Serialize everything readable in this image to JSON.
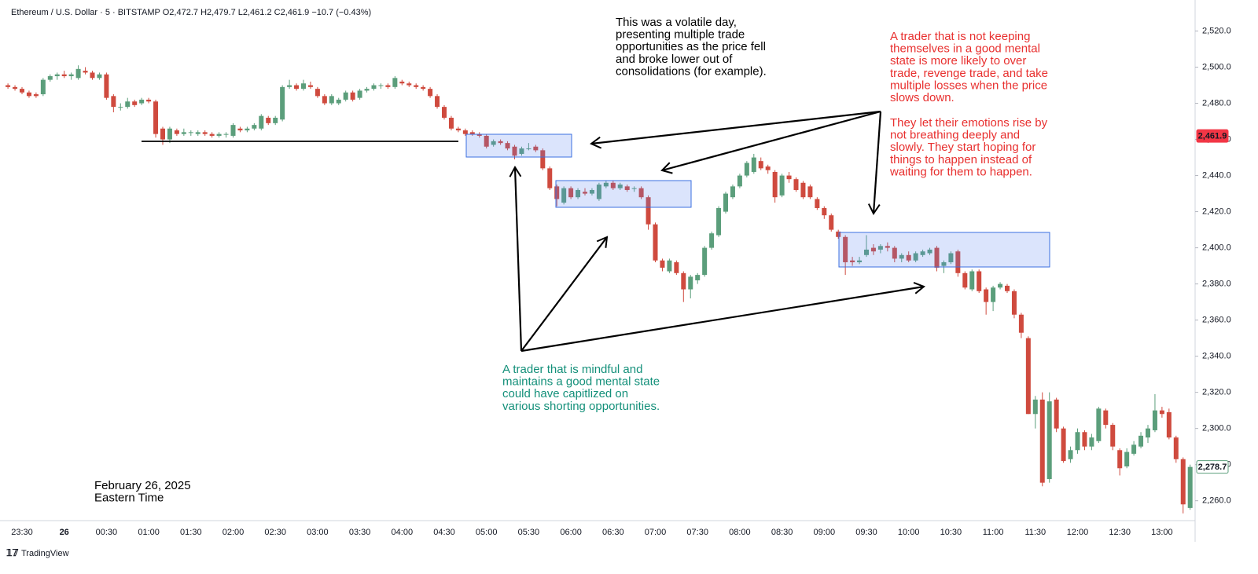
{
  "chart_data": {
    "type": "candlestick",
    "header": "Ethereum / U.S. Dollar · 5 · BITSTAMP  O2,472.7 H2,479.7 L2,461.2 C2,461.9 −10.7 (−0.43%)",
    "up_color": "#5b9e7b",
    "down_color": "#cf4a3e",
    "grid": false,
    "ylim": [
      2249,
      2535
    ],
    "yticks": [
      {
        "value": 2260,
        "label": "2,260.0"
      },
      {
        "value": 2280,
        "label": "2,280.0"
      },
      {
        "value": 2300,
        "label": "2,300.0"
      },
      {
        "value": 2320,
        "label": "2,320.0"
      },
      {
        "value": 2340,
        "label": "2,340.0"
      },
      {
        "value": 2360,
        "label": "2,360.0"
      },
      {
        "value": 2380,
        "label": "2,380.0"
      },
      {
        "value": 2400,
        "label": "2,400.0"
      },
      {
        "value": 2420,
        "label": "2,420.0"
      },
      {
        "value": 2440,
        "label": "2,440.0"
      },
      {
        "value": 2460,
        "label": "2,460.0"
      },
      {
        "value": 2480,
        "label": "2,480.0"
      },
      {
        "value": 2500,
        "label": "2,500.0"
      },
      {
        "value": 2520,
        "label": "2,520.0"
      }
    ],
    "price_labels": [
      {
        "value": 2461.9,
        "label": "2,461.9",
        "color": "#f23645"
      },
      {
        "value": 2278.7,
        "label": "2,278.7",
        "color": "#5b9e7b"
      }
    ],
    "categories": [
      null,
      null,
      "23:30",
      null,
      null,
      null,
      null,
      null,
      "26",
      null,
      null,
      null,
      null,
      null,
      "00:30",
      null,
      null,
      null,
      null,
      null,
      "01:00",
      null,
      null,
      null,
      null,
      null,
      "01:30",
      null,
      null,
      null,
      null,
      null,
      "02:00",
      null,
      null,
      null,
      null,
      null,
      "02:30",
      null,
      null,
      null,
      null,
      null,
      "03:00",
      null,
      null,
      null,
      null,
      null,
      "03:30",
      null,
      null,
      null,
      null,
      null,
      "04:00",
      null,
      null,
      null,
      null,
      null,
      "04:30",
      null,
      null,
      null,
      null,
      null,
      "05:00",
      null,
      null,
      null,
      null,
      null,
      "05:30",
      null,
      null,
      null,
      null,
      null,
      "06:00",
      null,
      null,
      null,
      null,
      null,
      "06:30",
      null,
      null,
      null,
      null,
      null,
      "07:00",
      null,
      null,
      null,
      null,
      null,
      "07:30",
      null,
      null,
      null,
      null,
      null,
      "08:00",
      null,
      null,
      null,
      null,
      null,
      "08:30",
      null,
      null,
      null,
      null,
      null,
      "09:00",
      null,
      null,
      null,
      null,
      null,
      "09:30",
      null,
      null,
      null,
      null,
      null,
      "10:00",
      null,
      null,
      null,
      null,
      null,
      "10:30",
      null,
      null,
      null,
      null,
      null,
      "11:00",
      null,
      null,
      null,
      null,
      null,
      "11:30",
      null,
      null,
      null,
      null,
      null,
      "12:00",
      null,
      null,
      null,
      null,
      null,
      "12:30",
      null,
      null,
      null,
      null,
      null,
      "13:00",
      null,
      null,
      null,
      null
    ],
    "candles": [
      [
        2490,
        2491,
        2488,
        2489
      ],
      [
        2489,
        2490,
        2487,
        2488
      ],
      [
        2488,
        2489,
        2485,
        2486
      ],
      [
        2486,
        2487,
        2483,
        2484
      ],
      [
        2485,
        2486,
        2483,
        2484
      ],
      [
        2485,
        2494,
        2484,
        2493
      ],
      [
        2493,
        2496,
        2492,
        2495
      ],
      [
        2495,
        2497,
        2493,
        2496
      ],
      [
        2496,
        2498,
        2494,
        2495
      ],
      [
        2495,
        2497,
        2493,
        2496
      ],
      [
        2494,
        2501,
        2493,
        2499
      ],
      [
        2498,
        2500,
        2496,
        2497
      ],
      [
        2497,
        2498,
        2493,
        2494
      ],
      [
        2494,
        2497,
        2493,
        2496
      ],
      [
        2496,
        2497,
        2482,
        2483
      ],
      [
        2484,
        2485,
        2475,
        2478
      ],
      [
        2478,
        2480,
        2476,
        2478
      ],
      [
        2478,
        2483,
        2477,
        2481
      ],
      [
        2481,
        2482,
        2478,
        2479
      ],
      [
        2480,
        2483,
        2479,
        2482
      ],
      [
        2482,
        2483,
        2480,
        2481
      ],
      [
        2481,
        2482,
        2461,
        2463
      ],
      [
        2466,
        2467,
        2457,
        2460
      ],
      [
        2460,
        2467,
        2458,
        2466
      ],
      [
        2465,
        2466,
        2462,
        2463
      ],
      [
        2463,
        2466,
        2462,
        2464
      ],
      [
        2464,
        2465,
        2462,
        2464
      ],
      [
        2463,
        2465,
        2462,
        2464
      ],
      [
        2464,
        2465,
        2462,
        2463
      ],
      [
        2463,
        2464,
        2461,
        2462
      ],
      [
        2462,
        2464,
        2461,
        2463
      ],
      [
        2463,
        2464,
        2461,
        2463
      ],
      [
        2462,
        2469,
        2461,
        2468
      ],
      [
        2466,
        2467,
        2464,
        2465
      ],
      [
        2465,
        2467,
        2464,
        2466
      ],
      [
        2466,
        2469,
        2465,
        2468
      ],
      [
        2466,
        2474,
        2465,
        2473
      ],
      [
        2472,
        2473,
        2468,
        2469
      ],
      [
        2469,
        2473,
        2468,
        2472
      ],
      [
        2471,
        2490,
        2470,
        2489
      ],
      [
        2489,
        2493,
        2488,
        2490
      ],
      [
        2490,
        2491,
        2487,
        2488
      ],
      [
        2488,
        2493,
        2487,
        2491
      ],
      [
        2490,
        2492,
        2488,
        2489
      ],
      [
        2488,
        2489,
        2483,
        2484
      ],
      [
        2484,
        2485,
        2479,
        2480
      ],
      [
        2480,
        2485,
        2479,
        2484
      ],
      [
        2480,
        2483,
        2479,
        2482
      ],
      [
        2482,
        2487,
        2481,
        2486
      ],
      [
        2486,
        2487,
        2481,
        2482
      ],
      [
        2483,
        2488,
        2482,
        2487
      ],
      [
        2487,
        2489,
        2486,
        2488
      ],
      [
        2488,
        2491,
        2487,
        2490
      ],
      [
        2490,
        2491,
        2488,
        2490
      ],
      [
        2490,
        2491,
        2488,
        2489
      ],
      [
        2489,
        2495,
        2488,
        2494
      ],
      [
        2492,
        2493,
        2490,
        2491
      ],
      [
        2491,
        2492,
        2489,
        2490
      ],
      [
        2490,
        2491,
        2488,
        2489
      ],
      [
        2489,
        2490,
        2487,
        2488
      ],
      [
        2488,
        2489,
        2483,
        2484
      ],
      [
        2484,
        2485,
        2477,
        2478
      ],
      [
        2478,
        2479,
        2471,
        2472
      ],
      [
        2472,
        2473,
        2465,
        2466
      ],
      [
        2466,
        2467,
        2464,
        2465
      ],
      [
        2465,
        2466,
        2462,
        2463
      ],
      [
        2464,
        2465,
        2462,
        2463
      ],
      [
        2463,
        2464,
        2461,
        2462
      ],
      [
        2462,
        2463,
        2455,
        2456
      ],
      [
        2457,
        2460,
        2456,
        2459
      ],
      [
        2459,
        2460,
        2457,
        2458
      ],
      [
        2458,
        2459,
        2454,
        2455
      ],
      [
        2456,
        2457,
        2449,
        2451
      ],
      [
        2452,
        2456,
        2451,
        2455
      ],
      [
        2455,
        2458,
        2454,
        2455
      ],
      [
        2456,
        2457,
        2453,
        2454
      ],
      [
        2454,
        2455,
        2443,
        2444
      ],
      [
        2444,
        2445,
        2432,
        2433
      ],
      [
        2434,
        2435,
        2423,
        2427
      ],
      [
        2425,
        2434,
        2424,
        2433
      ],
      [
        2433,
        2434,
        2427,
        2428
      ],
      [
        2428,
        2433,
        2427,
        2432
      ],
      [
        2431,
        2433,
        2429,
        2430
      ],
      [
        2430,
        2433,
        2429,
        2432
      ],
      [
        2427,
        2436,
        2426,
        2435
      ],
      [
        2434,
        2437,
        2433,
        2436
      ],
      [
        2436,
        2437,
        2432,
        2433
      ],
      [
        2433,
        2436,
        2432,
        2435
      ],
      [
        2434,
        2435,
        2431,
        2432
      ],
      [
        2433,
        2434,
        2431,
        2433
      ],
      [
        2433,
        2434,
        2427,
        2428
      ],
      [
        2428,
        2429,
        2410,
        2413
      ],
      [
        2413,
        2414,
        2392,
        2393
      ],
      [
        2393,
        2394,
        2387,
        2389
      ],
      [
        2387,
        2394,
        2386,
        2393
      ],
      [
        2392,
        2393,
        2385,
        2386
      ],
      [
        2386,
        2387,
        2370,
        2377
      ],
      [
        2377,
        2385,
        2372,
        2384
      ],
      [
        2382,
        2386,
        2380,
        2385
      ],
      [
        2385,
        2401,
        2384,
        2400
      ],
      [
        2400,
        2409,
        2399,
        2408
      ],
      [
        2407,
        2423,
        2406,
        2422
      ],
      [
        2420,
        2431,
        2419,
        2430
      ],
      [
        2428,
        2435,
        2427,
        2434
      ],
      [
        2434,
        2441,
        2433,
        2440
      ],
      [
        2440,
        2448,
        2439,
        2447
      ],
      [
        2442,
        2452,
        2441,
        2450
      ],
      [
        2448,
        2450,
        2443,
        2444
      ],
      [
        2445,
        2446,
        2441,
        2443
      ],
      [
        2442,
        2443,
        2425,
        2428
      ],
      [
        2429,
        2441,
        2428,
        2440
      ],
      [
        2440,
        2442,
        2436,
        2438
      ],
      [
        2438,
        2439,
        2431,
        2432
      ],
      [
        2436,
        2437,
        2427,
        2428
      ],
      [
        2434,
        2435,
        2427,
        2428
      ],
      [
        2427,
        2428,
        2421,
        2422
      ],
      [
        2422,
        2423,
        2416,
        2418
      ],
      [
        2418,
        2419,
        2409,
        2410
      ],
      [
        2409,
        2410,
        2405,
        2406
      ],
      [
        2406,
        2407,
        2385,
        2392
      ],
      [
        2393,
        2395,
        2390,
        2392
      ],
      [
        2392,
        2395,
        2391,
        2393
      ],
      [
        2396,
        2407,
        2395,
        2399
      ],
      [
        2400,
        2402,
        2396,
        2398
      ],
      [
        2399,
        2402,
        2397,
        2401
      ],
      [
        2401,
        2403,
        2398,
        2400
      ],
      [
        2400,
        2401,
        2392,
        2394
      ],
      [
        2394,
        2397,
        2392,
        2396
      ],
      [
        2396,
        2398,
        2392,
        2393
      ],
      [
        2393,
        2398,
        2392,
        2397
      ],
      [
        2396,
        2399,
        2395,
        2398
      ],
      [
        2397,
        2400,
        2396,
        2399
      ],
      [
        2400,
        2401,
        2387,
        2389
      ],
      [
        2390,
        2393,
        2386,
        2392
      ],
      [
        2392,
        2398,
        2391,
        2397
      ],
      [
        2398,
        2399,
        2384,
        2386
      ],
      [
        2386,
        2387,
        2377,
        2378
      ],
      [
        2377,
        2388,
        2376,
        2387
      ],
      [
        2387,
        2388,
        2375,
        2376
      ],
      [
        2377,
        2378,
        2363,
        2370
      ],
      [
        2370,
        2379,
        2365,
        2378
      ],
      [
        2378,
        2381,
        2377,
        2380
      ],
      [
        2379,
        2380,
        2375,
        2376
      ],
      [
        2376,
        2377,
        2361,
        2363
      ],
      [
        2363,
        2364,
        2350,
        2353
      ],
      [
        2350,
        2351,
        2308,
        2308
      ],
      [
        2308,
        2318,
        2300,
        2316
      ],
      [
        2316,
        2320,
        2268,
        2270
      ],
      [
        2272,
        2320,
        2270,
        2315
      ],
      [
        2316,
        2317,
        2298,
        2300
      ],
      [
        2300,
        2301,
        2281,
        2282
      ],
      [
        2283,
        2290,
        2281,
        2288
      ],
      [
        2288,
        2300,
        2286,
        2298
      ],
      [
        2298,
        2299,
        2288,
        2290
      ],
      [
        2290,
        2297,
        2288,
        2295
      ],
      [
        2293,
        2312,
        2292,
        2311
      ],
      [
        2310,
        2311,
        2300,
        2302
      ],
      [
        2302,
        2303,
        2288,
        2290
      ],
      [
        2288,
        2289,
        2274,
        2278
      ],
      [
        2279,
        2289,
        2278,
        2287
      ],
      [
        2286,
        2293,
        2285,
        2291
      ],
      [
        2290,
        2298,
        2289,
        2296
      ],
      [
        2295,
        2302,
        2292,
        2300
      ],
      [
        2299,
        2319,
        2298,
        2310
      ],
      [
        2310,
        2312,
        2306,
        2308
      ],
      [
        2309,
        2311,
        2294,
        2295
      ],
      [
        2295,
        2296,
        2281,
        2283
      ],
      [
        2283,
        2284,
        2253,
        2258
      ],
      [
        2256,
        2280,
        2255,
        2278.7
      ]
    ],
    "annotations": {
      "volatile": [
        "This was a volatile day,",
        "presenting multiple trade",
        "opportunities as the price fell",
        "and broke lower out of",
        "consolidations (for example)."
      ],
      "not_mindful": [
        "A trader that is not keeping",
        "themselves in a good mental",
        "state is more likely to over",
        "trade, revenge trade, and take",
        "multiple losses when the price",
        "slows down."
      ],
      "emotions": [
        "They let their emotions rise by",
        "not breathing deeply and",
        "slowly. They start hoping for",
        "things to happen instead of",
        "waiting for them to happen."
      ],
      "mindful": [
        "A trader that is mindful and",
        "maintains a good mental state",
        "could have capitlized on",
        "various shorting opportunities."
      ],
      "date": [
        "February 26, 2025",
        "Eastern Time"
      ]
    },
    "brand": "TradingView"
  }
}
